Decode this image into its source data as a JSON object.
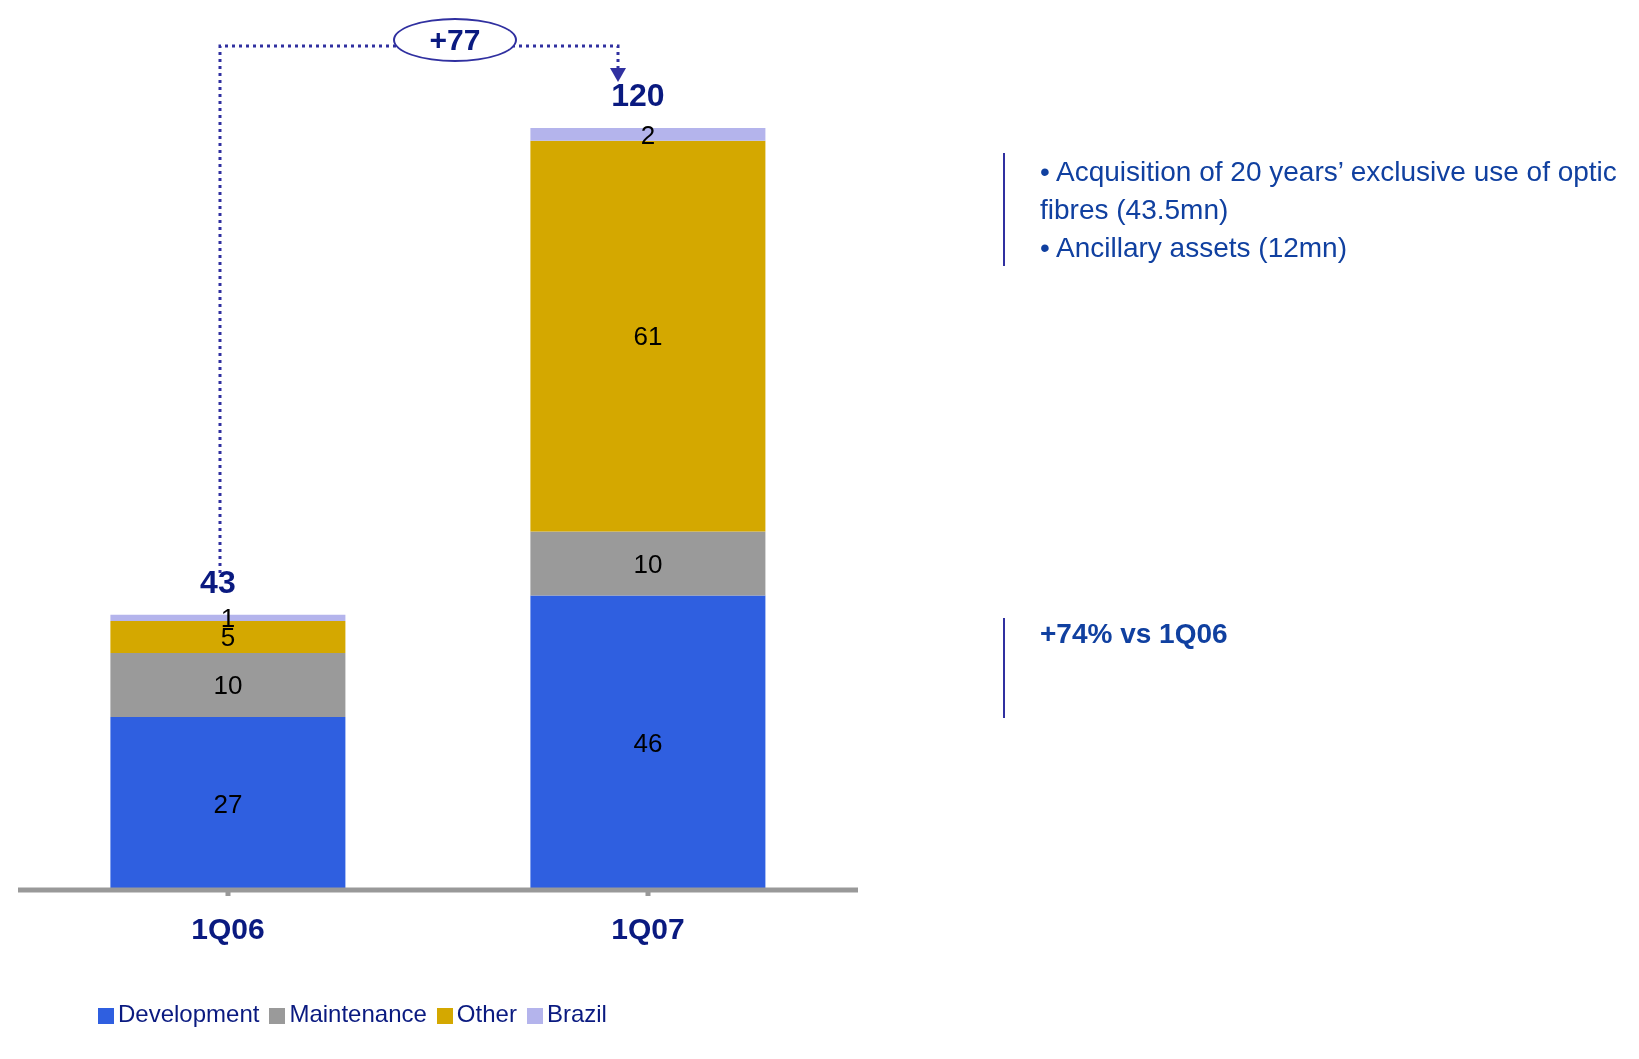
{
  "chart_data": {
    "type": "bar",
    "stacked": true,
    "categories": [
      "1Q06",
      "1Q07"
    ],
    "series": [
      {
        "name": "Development",
        "color": "#2f5fe0",
        "values": [
          27,
          46
        ]
      },
      {
        "name": "Maintenance",
        "color": "#9a9a9a",
        "values": [
          10,
          10
        ]
      },
      {
        "name": "Other",
        "color": "#d4a800",
        "values": [
          5,
          61
        ]
      },
      {
        "name": "Brazil",
        "color": "#b4b4ec",
        "values": [
          1,
          2
        ]
      }
    ],
    "data_labels": true,
    "totals": [
      "43",
      "120"
    ],
    "legend": "bottom",
    "tick_labels": "x",
    "annotations": [
      "+77",
      "• Acquisition of 20 years’ exclusive use of optic fibres (43.5mn)",
      "• Ancillary assets (12mn)",
      "+74% vs 1Q06"
    ]
  }
}
